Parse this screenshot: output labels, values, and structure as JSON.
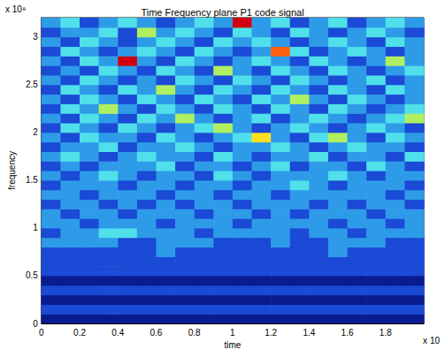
{
  "chart_data": {
    "type": "heatmap",
    "title": "Time Frequency plane P1 code signal",
    "x_label": "time",
    "y_label": "frequency",
    "annotations": [
      "x 10⁹",
      "x 10"
    ],
    "xlim": [
      0,
      2
    ],
    "ylim": [
      0,
      3.2
    ],
    "xticks": [
      0,
      0.2,
      0.4,
      0.6,
      0.8,
      1,
      1.2,
      1.4,
      1.6,
      1.8
    ],
    "yticks": [
      0,
      0.5,
      1,
      1.5,
      2,
      2.5,
      3
    ],
    "grid": false,
    "x": [
      0.05,
      0.15,
      0.25,
      0.35,
      0.45,
      0.55,
      0.65,
      0.75,
      0.85,
      0.95,
      1.05,
      1.15,
      1.25,
      1.35,
      1.45,
      1.55,
      1.65,
      1.75,
      1.85,
      1.95
    ],
    "y": [
      0.05,
      0.15,
      0.25,
      0.35,
      0.45,
      0.55,
      0.65,
      0.75,
      0.85,
      0.95,
      1.05,
      1.15,
      1.25,
      1.35,
      1.45,
      1.55,
      1.65,
      1.75,
      1.85,
      1.95,
      2.05,
      2.15,
      2.25,
      2.35,
      2.45,
      2.55,
      2.65,
      2.75,
      2.85,
      2.95,
      3.05,
      3.15
    ],
    "z": [
      [
        1,
        1,
        1,
        1,
        1,
        1,
        1,
        1,
        1,
        1,
        1,
        1,
        1,
        1,
        1,
        1,
        1,
        1,
        1,
        1
      ],
      [
        2,
        2,
        2,
        2,
        2,
        2,
        2,
        2,
        2,
        2,
        2,
        2,
        2,
        2,
        2,
        2,
        2,
        2,
        2,
        2
      ],
      [
        1,
        1,
        1,
        1,
        1,
        1,
        1,
        1,
        1,
        1,
        1,
        1,
        1,
        1,
        1,
        1,
        1,
        1,
        1,
        1
      ],
      [
        2,
        2,
        2,
        2,
        2,
        2,
        2,
        2,
        2,
        2,
        2,
        2,
        2,
        2,
        2,
        2,
        2,
        2,
        2,
        2
      ],
      [
        1,
        1,
        1,
        1,
        1,
        1,
        1,
        1,
        1,
        1,
        1,
        1,
        1,
        1,
        1,
        1,
        1,
        1,
        1,
        1
      ],
      [
        2,
        2,
        2,
        2,
        2,
        2,
        2,
        2,
        2,
        2,
        2,
        2,
        2,
        2,
        2,
        2,
        2,
        2,
        2,
        2
      ],
      [
        2,
        2,
        2,
        2,
        2,
        2,
        2,
        2,
        2,
        2,
        2,
        2,
        2,
        2,
        2,
        2,
        2,
        2,
        2,
        2
      ],
      [
        2,
        2,
        2,
        2,
        2,
        2,
        3,
        2,
        2,
        2,
        2,
        2,
        2,
        2,
        2,
        3,
        2,
        2,
        2,
        2
      ],
      [
        3,
        3,
        3,
        3,
        2,
        2,
        3,
        3,
        3,
        2,
        2,
        2,
        3,
        2,
        2,
        3,
        3,
        3,
        2,
        2
      ],
      [
        2,
        3,
        3,
        4,
        4,
        3,
        3,
        3,
        2,
        3,
        3,
        3,
        3,
        2,
        3,
        3,
        2,
        3,
        3,
        3
      ],
      [
        3,
        3,
        2,
        3,
        3,
        3,
        2,
        3,
        3,
        3,
        2,
        3,
        3,
        3,
        3,
        2,
        3,
        3,
        2,
        3
      ],
      [
        3,
        2,
        3,
        3,
        2,
        3,
        3,
        3,
        2,
        3,
        3,
        2,
        3,
        2,
        3,
        3,
        3,
        2,
        3,
        3
      ],
      [
        2,
        3,
        3,
        2,
        3,
        2,
        3,
        2,
        3,
        3,
        2,
        3,
        3,
        3,
        2,
        3,
        2,
        3,
        3,
        2
      ],
      [
        3,
        3,
        2,
        3,
        3,
        3,
        2,
        3,
        3,
        2,
        3,
        3,
        2,
        3,
        3,
        3,
        3,
        3,
        2,
        3
      ],
      [
        2,
        3,
        3,
        3,
        2,
        3,
        3,
        2,
        3,
        3,
        2,
        3,
        3,
        4,
        3,
        2,
        3,
        3,
        3,
        2
      ],
      [
        3,
        2,
        3,
        4,
        3,
        2,
        3,
        3,
        2,
        4,
        3,
        2,
        3,
        3,
        3,
        4,
        3,
        2,
        3,
        3
      ],
      [
        2,
        3,
        2,
        3,
        3,
        3,
        4,
        2,
        3,
        3,
        2,
        3,
        4,
        2,
        3,
        3,
        2,
        4,
        3,
        2
      ],
      [
        3,
        4,
        3,
        2,
        3,
        4,
        3,
        3,
        2,
        4,
        3,
        2,
        3,
        3,
        4,
        2,
        3,
        3,
        2,
        4
      ],
      [
        2,
        3,
        3,
        4,
        2,
        3,
        3,
        4,
        3,
        2,
        3,
        3,
        4,
        3,
        2,
        3,
        4,
        3,
        3,
        2
      ],
      [
        3,
        2,
        4,
        3,
        3,
        2,
        4,
        3,
        2,
        3,
        4,
        6,
        3,
        2,
        4,
        5,
        3,
        2,
        4,
        3
      ],
      [
        2,
        4,
        3,
        2,
        4,
        3,
        2,
        3,
        4,
        5,
        3,
        2,
        3,
        4,
        3,
        2,
        3,
        4,
        3,
        2
      ],
      [
        3,
        2,
        4,
        3,
        2,
        4,
        3,
        5,
        3,
        2,
        3,
        4,
        2,
        3,
        4,
        3,
        2,
        3,
        4,
        5
      ],
      [
        2,
        4,
        3,
        5,
        3,
        2,
        4,
        3,
        2,
        4,
        3,
        2,
        4,
        3,
        2,
        4,
        3,
        2,
        3,
        4
      ],
      [
        3,
        2,
        4,
        3,
        2,
        4,
        3,
        2,
        4,
        3,
        2,
        4,
        3,
        5,
        3,
        2,
        4,
        3,
        2,
        3
      ],
      [
        2,
        4,
        3,
        2,
        4,
        3,
        5,
        3,
        2,
        4,
        3,
        2,
        4,
        3,
        2,
        4,
        3,
        2,
        4,
        3
      ],
      [
        3,
        2,
        4,
        3,
        2,
        3,
        2,
        4,
        3,
        2,
        4,
        3,
        2,
        4,
        3,
        2,
        3,
        4,
        2,
        3
      ],
      [
        2,
        3,
        2,
        4,
        3,
        2,
        4,
        3,
        2,
        5,
        3,
        2,
        4,
        3,
        2,
        4,
        3,
        2,
        3,
        4
      ],
      [
        3,
        2,
        4,
        3,
        8,
        3,
        2,
        4,
        3,
        2,
        3,
        4,
        3,
        2,
        4,
        3,
        2,
        3,
        5,
        3
      ],
      [
        2,
        4,
        3,
        2,
        3,
        4,
        3,
        2,
        4,
        3,
        2,
        3,
        7,
        4,
        2,
        3,
        4,
        3,
        2,
        3
      ],
      [
        3,
        2,
        4,
        3,
        2,
        3,
        4,
        3,
        2,
        4,
        3,
        4,
        3,
        2,
        3,
        4,
        3,
        2,
        4,
        3
      ],
      [
        2,
        3,
        3,
        4,
        2,
        5,
        3,
        4,
        3,
        2,
        4,
        3,
        2,
        4,
        3,
        2,
        3,
        4,
        3,
        2
      ],
      [
        3,
        4,
        2,
        3,
        4,
        3,
        2,
        3,
        4,
        3,
        8,
        3,
        4,
        2,
        3,
        4,
        2,
        3,
        4,
        3
      ]
    ]
  }
}
